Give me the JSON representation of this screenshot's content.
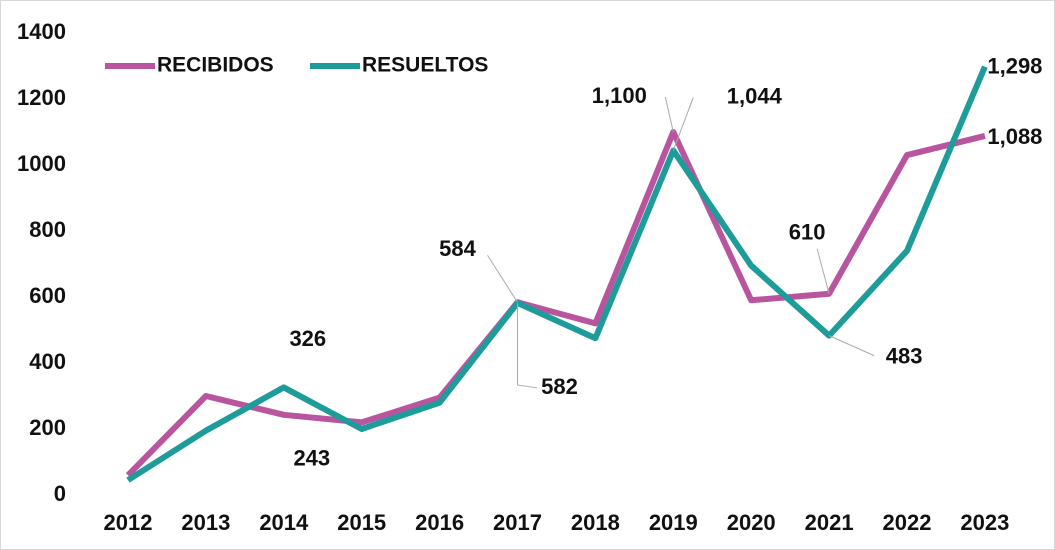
{
  "chart_data": {
    "type": "line",
    "categories": [
      "2012",
      "2013",
      "2014",
      "2015",
      "2016",
      "2017",
      "2018",
      "2019",
      "2020",
      "2021",
      "2022",
      "2023"
    ],
    "series": [
      {
        "name": "RECIBIDOS",
        "color": "#b9559f",
        "values": [
          60,
          300,
          243,
          220,
          295,
          584,
          520,
          1100,
          590,
          610,
          1030,
          1088
        ],
        "value_labels": [
          null,
          null,
          "243",
          null,
          null,
          "584",
          null,
          "1,100",
          null,
          "610",
          null,
          "1,088"
        ]
      },
      {
        "name": "RESUELTOS",
        "color": "#1e9c9a",
        "values": [
          45,
          195,
          326,
          200,
          280,
          582,
          475,
          1044,
          695,
          483,
          740,
          1298
        ],
        "value_labels": [
          null,
          null,
          "326",
          null,
          null,
          "582",
          null,
          "1,044",
          null,
          "483",
          null,
          "1,298"
        ]
      }
    ],
    "ylim": [
      0,
      1400
    ],
    "yticks": [
      0,
      200,
      400,
      600,
      800,
      1000,
      1200,
      1400
    ],
    "grid": false,
    "legend": "top-left"
  }
}
